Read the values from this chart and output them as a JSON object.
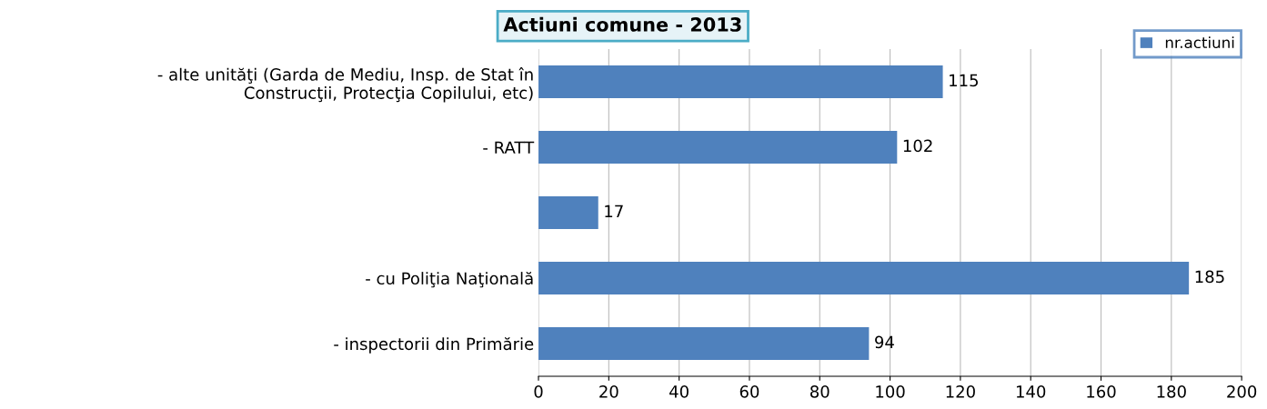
{
  "chart_data": {
    "type": "bar",
    "orientation": "horizontal",
    "title": "Actiuni comune - 2013",
    "categories": [
      "- alte unităţi (Garda de Mediu, Insp. de Stat în\nConstrucţii, Protecţia Copilului, etc)",
      "- RATT",
      null,
      "- cu Poliţia Naţională",
      "- inspectorii din Primărie"
    ],
    "series": [
      {
        "name": "nr.actiuni",
        "color": "#4f81bd",
        "values": [
          115,
          102,
          17,
          185,
          94
        ]
      }
    ],
    "xlim": [
      0,
      200
    ],
    "xticks": [
      0,
      20,
      40,
      60,
      80,
      100,
      120,
      140,
      160,
      180,
      200
    ],
    "grid": "x",
    "legend": "top right",
    "data_labels": true
  }
}
